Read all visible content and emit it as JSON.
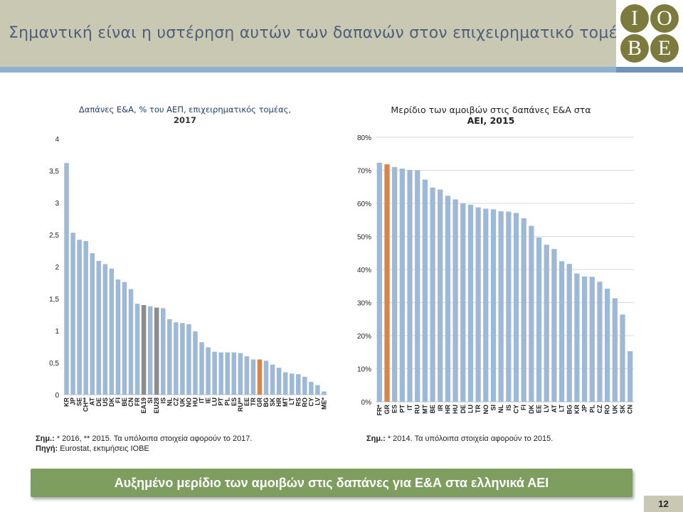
{
  "header": {
    "title": "Σημαντική είναι η υστέρηση αυτών των δαπανών στον επιχειρηματικό τομέα",
    "logo_letters": [
      "I",
      "O",
      "B",
      "E"
    ]
  },
  "colors": {
    "bar": "#9db9d6",
    "highlight_greece": "#d98448",
    "highlight_aggregate": "#8c8c8c",
    "banner": "#7e9e60",
    "header_band": "#c9c9b3",
    "logo": "#7c7a3c"
  },
  "chart_data": [
    {
      "type": "bar",
      "title_line1": "Δαπάνες Ε&Α, % του ΑΕΠ, επιχειρηματικός τομέας,",
      "title_line2": "2017",
      "ylim": [
        0,
        4
      ],
      "yticks": [
        "0",
        "0,5",
        "1",
        "1,5",
        "2",
        "2,5",
        "3",
        "3,5",
        "4"
      ],
      "grid": false,
      "categories": [
        "KR",
        "JP",
        "SE",
        "CH**",
        "AT",
        "DE",
        "US",
        "DK",
        "FI",
        "BE",
        "CN",
        "FR",
        "EA19",
        "SI",
        "EU28",
        "IS",
        "NL",
        "CZ",
        "UK",
        "NO",
        "HU",
        "IT",
        "IE",
        "LU",
        "PT",
        "PL",
        "ES",
        "RU**",
        "EE",
        "TR",
        "GR",
        "BG",
        "SK",
        "HR",
        "MT",
        "LT",
        "RS",
        "RO",
        "CY",
        "LV",
        "ME*"
      ],
      "values": [
        3.62,
        2.53,
        2.42,
        2.4,
        2.21,
        2.09,
        2.04,
        1.97,
        1.8,
        1.76,
        1.65,
        1.42,
        1.4,
        1.38,
        1.36,
        1.35,
        1.18,
        1.13,
        1.12,
        1.1,
        0.99,
        0.82,
        0.74,
        0.67,
        0.66,
        0.66,
        0.66,
        0.65,
        0.6,
        0.55,
        0.55,
        0.53,
        0.47,
        0.42,
        0.35,
        0.33,
        0.32,
        0.28,
        0.2,
        0.15,
        0.05
      ],
      "highlight": {
        "GR": "greece",
        "EA19": "aggregate",
        "EU28": "aggregate"
      },
      "note_label": "Σημ.:",
      "note_text": "* 2016, ** 2015. Τα υπόλοιπα στοιχεία αφορούν το 2017.",
      "source_label": "Πηγή:",
      "source_text": "Eurostat, εκτιμήσεις ΙΟΒΕ"
    },
    {
      "type": "bar",
      "title_line1": "Μερίδιο των αμοιβών στις δαπάνες Ε&Α στα",
      "title_line2": "ΑΕΙ, 2015",
      "ylim": [
        0,
        80
      ],
      "yticks": [
        "0%",
        "10%",
        "20%",
        "30%",
        "40%",
        "50%",
        "60%",
        "70%",
        "80%"
      ],
      "grid": true,
      "categories": [
        "FR*",
        "GR",
        "ES",
        "PT",
        "IT",
        "RU",
        "MT",
        "BE",
        "IR",
        "HR",
        "HU",
        "DE",
        "LU",
        "TR",
        "NO",
        "SI",
        "NL",
        "IS",
        "CY",
        "FI",
        "DK",
        "EE",
        "LV",
        "AT",
        "LT",
        "BG",
        "KR",
        "JP",
        "PL",
        "CZ",
        "RO",
        "UK",
        "SK",
        "CN"
      ],
      "values": [
        72.3,
        71.8,
        71.0,
        70.5,
        70.1,
        70.0,
        67.2,
        64.8,
        64.2,
        62.3,
        61.2,
        60.0,
        59.6,
        58.8,
        58.4,
        58.2,
        57.6,
        57.5,
        57.1,
        55.5,
        53.2,
        49.7,
        47.5,
        46.2,
        42.5,
        41.7,
        38.8,
        37.9,
        37.8,
        36.3,
        34.2,
        31.3,
        26.4,
        15.3
      ],
      "highlight": {
        "GR": "greece"
      },
      "note_label": "Σημ.:",
      "note_text": "* 2014. Τα υπόλοιπα στοιχεία αφορούν το 2015."
    }
  ],
  "banner": {
    "text": "Αυξημένο μερίδιο των αμοιβών στις δαπάνες για Ε&Α στα ελληνικά ΑΕΙ"
  },
  "page_number": "12"
}
